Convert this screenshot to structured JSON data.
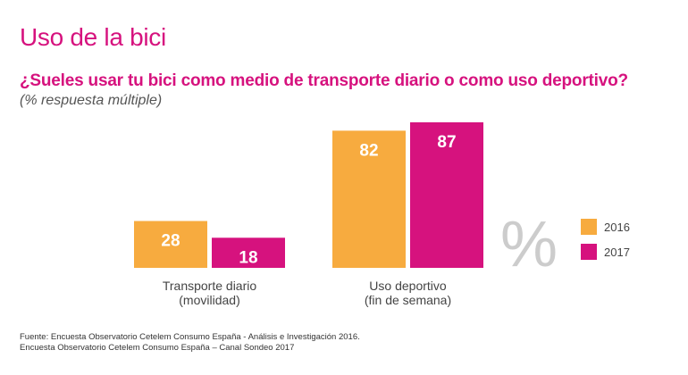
{
  "heading": "Uso de la bici",
  "question": "¿Sueles usar tu bici como medio de transporte diario o como uso deportivo?",
  "subquestion": "(% respuesta múltiple)",
  "unit_symbol": "%",
  "source": {
    "line1": "Fuente: Encuesta Observatorio Cetelem Consumo España - Análisis e Investigación 2016.",
    "line2": "Encuesta Observatorio Cetelem Consumo España – Canal Sondeo 2017"
  },
  "colors": {
    "2016": "#f7ab3f",
    "2017": "#d6127e",
    "accent": "#d6127e"
  },
  "chart_data": {
    "type": "bar",
    "categories": [
      [
        "Transporte diario",
        "(movilidad)"
      ],
      [
        "Uso deportivo",
        "(fin de semana)"
      ]
    ],
    "series": [
      {
        "name": "2016",
        "values": [
          28,
          82
        ]
      },
      {
        "name": "2017",
        "values": [
          18,
          87
        ]
      }
    ],
    "ylim": [
      0,
      90
    ],
    "grid": false,
    "legend": "right"
  }
}
